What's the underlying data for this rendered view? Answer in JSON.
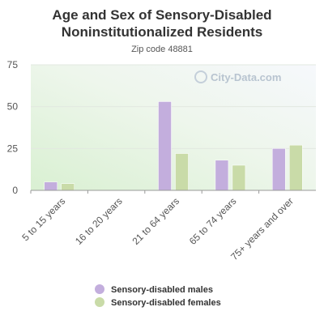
{
  "title": "Age and Sex of Sensory-Disabled Noninstitutionalized Residents",
  "subtitle": "Zip code 48881",
  "watermark": "City-Data.com",
  "chart_data": {
    "type": "bar",
    "categories": [
      "5 to 15 years",
      "16 to 20 years",
      "21 to 64 years",
      "65 to 74 years",
      "75+ years and over"
    ],
    "series": [
      {
        "name": "Sensory-disabled males",
        "color": "#c3aedd",
        "values": [
          5,
          0,
          53,
          18,
          25
        ]
      },
      {
        "name": "Sensory-disabled females",
        "color": "#c9dba8",
        "values": [
          4,
          0,
          22,
          15,
          27
        ]
      }
    ],
    "ylim": [
      0,
      75
    ],
    "yticks": [
      0,
      25,
      50,
      75
    ],
    "grid": true,
    "legend": "bottom",
    "xlabel": "",
    "ylabel": ""
  }
}
